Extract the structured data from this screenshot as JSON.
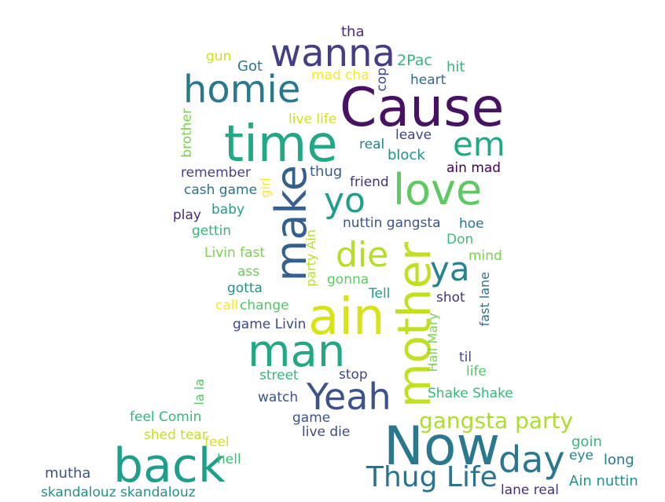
{
  "colors": {
    "background": "#ffffff",
    "palette": [
      "#440154",
      "#3b528b",
      "#21918c",
      "#5ec962",
      "#fde725"
    ]
  },
  "words": [
    {
      "text": "Cause",
      "color": "#471164"
    },
    {
      "text": "Now",
      "color": "#2a788e"
    },
    {
      "text": "time",
      "color": "#22a884"
    },
    {
      "text": "ain",
      "color": "#d8e219"
    },
    {
      "text": "mother",
      "color": "#c2df23"
    },
    {
      "text": "back",
      "color": "#1f9e89"
    },
    {
      "text": "make",
      "color": "#355f8d"
    },
    {
      "text": "man",
      "color": "#22a884"
    },
    {
      "text": "love",
      "color": "#5ec962"
    },
    {
      "text": "wanna",
      "color": "#433e85"
    },
    {
      "text": "homie",
      "color": "#2a788e"
    },
    {
      "text": "Yeah",
      "color": "#3b528b"
    },
    {
      "text": "day",
      "color": "#2a788e"
    },
    {
      "text": "em",
      "color": "#22a884"
    },
    {
      "text": "yo",
      "color": "#1f9e89"
    },
    {
      "text": "die",
      "color": "#b5de2b"
    },
    {
      "text": "ya",
      "color": "#26828e"
    },
    {
      "text": "Thug Life",
      "color": "#2c728e"
    },
    {
      "text": "gangsta party",
      "color": "#addc30"
    },
    {
      "text": "tha",
      "color": "#482878"
    },
    {
      "text": "2Pac",
      "color": "#35b779"
    },
    {
      "text": "gun",
      "color": "#d0e11c"
    },
    {
      "text": "Got",
      "color": "#2a788e"
    },
    {
      "text": "hit",
      "color": "#35b779"
    },
    {
      "text": "mad cha",
      "color": "#fde725"
    },
    {
      "text": "cop",
      "color": "#3e4989"
    },
    {
      "text": "heart",
      "color": "#31688e"
    },
    {
      "text": "live life",
      "color": "#d0e11c"
    },
    {
      "text": "brother",
      "color": "#7ad151"
    },
    {
      "text": "real",
      "color": "#26828e"
    },
    {
      "text": "leave",
      "color": "#414487"
    },
    {
      "text": "block",
      "color": "#21918c"
    },
    {
      "text": "remember",
      "color": "#433e85"
    },
    {
      "text": "thug",
      "color": "#355f8d"
    },
    {
      "text": "ain mad",
      "color": "#440154"
    },
    {
      "text": "cash game",
      "color": "#2c728e"
    },
    {
      "text": "girl",
      "color": "#fde725"
    },
    {
      "text": "friend",
      "color": "#46327e"
    },
    {
      "text": "play",
      "color": "#482878"
    },
    {
      "text": "baby",
      "color": "#1f9e89"
    },
    {
      "text": "nuttin gangsta",
      "color": "#3b528b"
    },
    {
      "text": "hoe",
      "color": "#2c728e"
    },
    {
      "text": "gettin",
      "color": "#35b779"
    },
    {
      "text": "Don",
      "color": "#3fbc73"
    },
    {
      "text": "Livin fast",
      "color": "#7ad151"
    },
    {
      "text": "party Ain",
      "color": "#b5de2b"
    },
    {
      "text": "mind",
      "color": "#7ad151"
    },
    {
      "text": "ass",
      "color": "#6ece58"
    },
    {
      "text": "gonna",
      "color": "#5ec962"
    },
    {
      "text": "gotta",
      "color": "#21918c"
    },
    {
      "text": "Tell",
      "color": "#1f9e89"
    },
    {
      "text": "shot",
      "color": "#46327e"
    },
    {
      "text": "fast lane",
      "color": "#2c728e"
    },
    {
      "text": "call",
      "color": "#fde725"
    },
    {
      "text": "change",
      "color": "#54c568"
    },
    {
      "text": "game Livin",
      "color": "#3e4989"
    },
    {
      "text": "Hail Mary",
      "color": "#7ad151"
    },
    {
      "text": "til",
      "color": "#3e4989"
    },
    {
      "text": "life",
      "color": "#54c568"
    },
    {
      "text": "la la",
      "color": "#54c568"
    },
    {
      "text": "street",
      "color": "#35b779"
    },
    {
      "text": "stop",
      "color": "#414487"
    },
    {
      "text": "Shake Shake",
      "color": "#35b779"
    },
    {
      "text": "watch",
      "color": "#3b528b"
    },
    {
      "text": "feel Comin",
      "color": "#35b779"
    },
    {
      "text": "game",
      "color": "#3b528b"
    },
    {
      "text": "live die",
      "color": "#3e4989"
    },
    {
      "text": "shed tear",
      "color": "#c2df23"
    },
    {
      "text": "feel",
      "color": "#d8e219"
    },
    {
      "text": "goin",
      "color": "#35b779"
    },
    {
      "text": "hell",
      "color": "#3fbc73"
    },
    {
      "text": "eye",
      "color": "#26828e"
    },
    {
      "text": "long",
      "color": "#2a788e"
    },
    {
      "text": "mutha",
      "color": "#3b528b"
    },
    {
      "text": "Ain nuttin",
      "color": "#21918c"
    },
    {
      "text": "skandalouz skandalouz",
      "color": "#21918c"
    },
    {
      "text": "lane real",
      "color": "#46327e"
    }
  ]
}
